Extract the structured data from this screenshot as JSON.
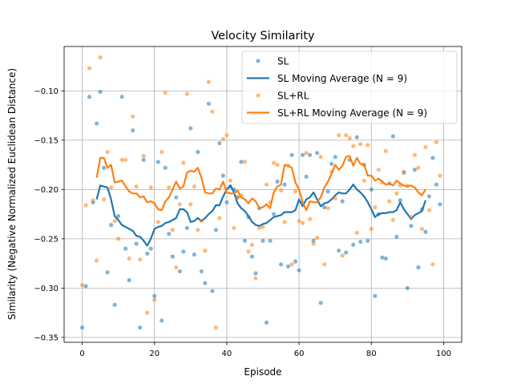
{
  "chart_data": {
    "type": "scatter",
    "title": "Velocity Similarity",
    "xlabel": "Episode",
    "ylabel": "Similarity (Negative Normalized Euclidean Distance)",
    "xlim": [
      -5,
      105
    ],
    "ylim": [
      -0.355,
      -0.055
    ],
    "xticks": [
      0,
      20,
      40,
      60,
      80,
      100
    ],
    "xtick_labels": [
      "0",
      "20",
      "40",
      "60",
      "80",
      "100"
    ],
    "yticks": [
      -0.35,
      -0.3,
      -0.25,
      -0.2,
      -0.15,
      -0.1
    ],
    "ytick_labels": [
      "−0.35",
      "−0.30",
      "−0.25",
      "−0.20",
      "−0.15",
      "−0.10"
    ],
    "grid": true,
    "legend_position": "top-right",
    "colors": {
      "SL": "#1f77b4",
      "SL+RL": "#ff7f0e"
    },
    "series": [
      {
        "name": "SL",
        "kind": "scatter",
        "color": "#1f77b4",
        "x": [
          0,
          1,
          2,
          3,
          4,
          5,
          6,
          7,
          8,
          9,
          10,
          11,
          12,
          13,
          14,
          15,
          16,
          17,
          18,
          19,
          20,
          21,
          22,
          23,
          24,
          25,
          26,
          27,
          28,
          29,
          30,
          31,
          32,
          33,
          34,
          35,
          36,
          37,
          38,
          39,
          40,
          41,
          42,
          43,
          44,
          45,
          46,
          47,
          48,
          49,
          50,
          51,
          52,
          53,
          54,
          55,
          56,
          57,
          58,
          59,
          60,
          61,
          62,
          63,
          64,
          65,
          66,
          67,
          68,
          69,
          70,
          71,
          72,
          73,
          74,
          75,
          76,
          77,
          78,
          79,
          80,
          81,
          82,
          83,
          84,
          85,
          86,
          87,
          88,
          89,
          90,
          91,
          92,
          93,
          94,
          95,
          96,
          97,
          98,
          99
        ],
        "y": [
          -0.34,
          -0.298,
          -0.106,
          -0.213,
          -0.133,
          -0.101,
          -0.178,
          -0.284,
          -0.236,
          -0.317,
          -0.227,
          -0.106,
          -0.26,
          -0.292,
          -0.14,
          -0.255,
          -0.34,
          -0.17,
          -0.265,
          -0.26,
          -0.308,
          -0.172,
          -0.333,
          -0.178,
          -0.245,
          -0.268,
          -0.208,
          -0.283,
          -0.263,
          -0.239,
          -0.138,
          -0.266,
          -0.162,
          -0.283,
          -0.295,
          -0.113,
          -0.303,
          -0.241,
          -0.153,
          -0.186,
          -0.213,
          -0.197,
          -0.2,
          -0.208,
          -0.172,
          -0.252,
          -0.228,
          -0.268,
          -0.285,
          -0.219,
          -0.252,
          -0.335,
          -0.252,
          -0.225,
          -0.192,
          -0.276,
          -0.195,
          -0.278,
          -0.165,
          -0.273,
          -0.282,
          -0.165,
          -0.187,
          -0.165,
          -0.252,
          -0.163,
          -0.315,
          -0.218,
          -0.202,
          -0.174,
          -0.167,
          -0.262,
          -0.212,
          -0.264,
          -0.17,
          -0.256,
          -0.147,
          -0.253,
          -0.175,
          -0.252,
          -0.2,
          -0.308,
          -0.225,
          -0.269,
          -0.27,
          -0.194,
          -0.146,
          -0.248,
          -0.211,
          -0.183,
          -0.3,
          -0.237,
          -0.18,
          -0.279,
          -0.22,
          -0.243,
          -0.207,
          -0.168,
          -0.195,
          -0.215
        ]
      },
      {
        "name": "SL Moving Average (N = 9)",
        "kind": "line",
        "color": "#1f77b4",
        "x": [
          4,
          5,
          6,
          7,
          8,
          9,
          10,
          11,
          12,
          13,
          14,
          15,
          16,
          17,
          18,
          19,
          20,
          21,
          22,
          23,
          24,
          25,
          26,
          27,
          28,
          29,
          30,
          31,
          32,
          33,
          34,
          35,
          36,
          37,
          38,
          39,
          40,
          41,
          42,
          43,
          44,
          45,
          46,
          47,
          48,
          49,
          50,
          51,
          52,
          53,
          54,
          55,
          56,
          57,
          58,
          59,
          60,
          61,
          62,
          63,
          64,
          65,
          66,
          67,
          68,
          69,
          70,
          71,
          72,
          73,
          74,
          75,
          76,
          77,
          78,
          79,
          80,
          81,
          82,
          83,
          84,
          85,
          86,
          87,
          88,
          89,
          90,
          91,
          92,
          93,
          94,
          95
        ],
        "y": [
          -0.21,
          -0.196,
          -0.197,
          -0.198,
          -0.21,
          -0.227,
          -0.231,
          -0.236,
          -0.238,
          -0.24,
          -0.242,
          -0.247,
          -0.248,
          -0.252,
          -0.257,
          -0.25,
          -0.24,
          -0.238,
          -0.237,
          -0.234,
          -0.233,
          -0.231,
          -0.229,
          -0.22,
          -0.22,
          -0.223,
          -0.233,
          -0.232,
          -0.229,
          -0.232,
          -0.229,
          -0.225,
          -0.222,
          -0.216,
          -0.216,
          -0.207,
          -0.2,
          -0.196,
          -0.203,
          -0.214,
          -0.219,
          -0.222,
          -0.227,
          -0.233,
          -0.236,
          -0.237,
          -0.235,
          -0.234,
          -0.231,
          -0.228,
          -0.227,
          -0.226,
          -0.223,
          -0.223,
          -0.223,
          -0.221,
          -0.21,
          -0.217,
          -0.21,
          -0.208,
          -0.203,
          -0.21,
          -0.217,
          -0.214,
          -0.213,
          -0.21,
          -0.206,
          -0.203,
          -0.204,
          -0.204,
          -0.2,
          -0.195,
          -0.2,
          -0.203,
          -0.207,
          -0.213,
          -0.22,
          -0.228,
          -0.225,
          -0.224,
          -0.224,
          -0.223,
          -0.223,
          -0.221,
          -0.213,
          -0.22,
          -0.225,
          -0.23,
          -0.226,
          -0.224,
          -0.222,
          -0.211
        ]
      },
      {
        "name": "SL+RL",
        "kind": "scatter",
        "color": "#ff7f0e",
        "x": [
          0,
          1,
          2,
          3,
          4,
          5,
          6,
          7,
          8,
          9,
          10,
          11,
          12,
          13,
          14,
          15,
          16,
          17,
          18,
          19,
          20,
          21,
          22,
          23,
          24,
          25,
          26,
          27,
          28,
          29,
          30,
          31,
          32,
          33,
          34,
          35,
          36,
          37,
          38,
          39,
          40,
          41,
          42,
          43,
          44,
          45,
          46,
          47,
          48,
          49,
          50,
          51,
          52,
          53,
          54,
          55,
          56,
          57,
          58,
          59,
          60,
          61,
          62,
          63,
          64,
          65,
          66,
          67,
          68,
          69,
          70,
          71,
          72,
          73,
          74,
          75,
          76,
          77,
          78,
          79,
          80,
          81,
          82,
          83,
          84,
          85,
          86,
          87,
          88,
          89,
          90,
          91,
          92,
          93,
          94,
          95,
          96,
          97,
          98,
          99
        ],
        "y": [
          -0.297,
          -0.216,
          -0.077,
          -0.211,
          -0.272,
          -0.066,
          -0.21,
          -0.162,
          -0.198,
          -0.232,
          -0.25,
          -0.17,
          -0.17,
          -0.27,
          -0.126,
          -0.197,
          -0.271,
          -0.166,
          -0.325,
          -0.198,
          -0.312,
          -0.233,
          -0.162,
          -0.102,
          -0.198,
          -0.241,
          -0.279,
          -0.215,
          -0.173,
          -0.103,
          -0.215,
          -0.197,
          -0.241,
          -0.232,
          -0.262,
          -0.091,
          -0.121,
          -0.34,
          -0.229,
          -0.149,
          -0.145,
          -0.191,
          -0.239,
          -0.208,
          -0.206,
          -0.172,
          -0.263,
          -0.256,
          -0.29,
          -0.239,
          -0.238,
          -0.195,
          -0.213,
          -0.173,
          -0.175,
          -0.201,
          -0.233,
          -0.176,
          -0.276,
          -0.202,
          -0.232,
          -0.234,
          -0.163,
          -0.23,
          -0.255,
          -0.249,
          -0.167,
          -0.276,
          -0.219,
          -0.182,
          -0.209,
          -0.145,
          -0.267,
          -0.145,
          -0.148,
          -0.156,
          -0.244,
          -0.154,
          -0.191,
          -0.155,
          -0.24,
          -0.218,
          -0.18,
          -0.193,
          -0.161,
          -0.212,
          -0.231,
          -0.204,
          -0.196,
          -0.182,
          -0.196,
          -0.228,
          -0.165,
          -0.178,
          -0.24,
          -0.157,
          -0.221,
          -0.276,
          -0.152,
          -0.186
        ]
      },
      {
        "name": "SL+RL Moving Average (N = 9)",
        "kind": "line",
        "color": "#ff7f0e",
        "x": [
          4,
          5,
          6,
          7,
          8,
          9,
          10,
          11,
          12,
          13,
          14,
          15,
          16,
          17,
          18,
          19,
          20,
          21,
          22,
          23,
          24,
          25,
          26,
          27,
          28,
          29,
          30,
          31,
          32,
          33,
          34,
          35,
          36,
          37,
          38,
          39,
          40,
          41,
          42,
          43,
          44,
          45,
          46,
          47,
          48,
          49,
          50,
          51,
          52,
          53,
          54,
          55,
          56,
          57,
          58,
          59,
          60,
          61,
          62,
          63,
          64,
          65,
          66,
          67,
          68,
          69,
          70,
          71,
          72,
          73,
          74,
          75,
          76,
          77,
          78,
          79,
          80,
          81,
          82,
          83,
          84,
          85,
          86,
          87,
          88,
          89,
          90,
          91,
          92,
          93,
          94,
          95
        ],
        "y": [
          -0.188,
          -0.168,
          -0.168,
          -0.178,
          -0.175,
          -0.193,
          -0.192,
          -0.191,
          -0.197,
          -0.202,
          -0.204,
          -0.204,
          -0.208,
          -0.207,
          -0.213,
          -0.212,
          -0.214,
          -0.22,
          -0.221,
          -0.212,
          -0.208,
          -0.2,
          -0.192,
          -0.199,
          -0.197,
          -0.183,
          -0.181,
          -0.182,
          -0.178,
          -0.188,
          -0.203,
          -0.204,
          -0.204,
          -0.199,
          -0.2,
          -0.192,
          -0.203,
          -0.204,
          -0.204,
          -0.201,
          -0.208,
          -0.21,
          -0.214,
          -0.209,
          -0.212,
          -0.219,
          -0.218,
          -0.215,
          -0.219,
          -0.203,
          -0.197,
          -0.195,
          -0.175,
          -0.176,
          -0.178,
          -0.193,
          -0.2,
          -0.213,
          -0.221,
          -0.212,
          -0.213,
          -0.213,
          -0.208,
          -0.198,
          -0.192,
          -0.184,
          -0.175,
          -0.18,
          -0.176,
          -0.167,
          -0.166,
          -0.176,
          -0.168,
          -0.174,
          -0.175,
          -0.186,
          -0.186,
          -0.191,
          -0.189,
          -0.192,
          -0.195,
          -0.194,
          -0.196,
          -0.191,
          -0.194,
          -0.196,
          -0.197,
          -0.196,
          -0.198,
          -0.203,
          -0.206,
          -0.2
        ]
      }
    ]
  }
}
